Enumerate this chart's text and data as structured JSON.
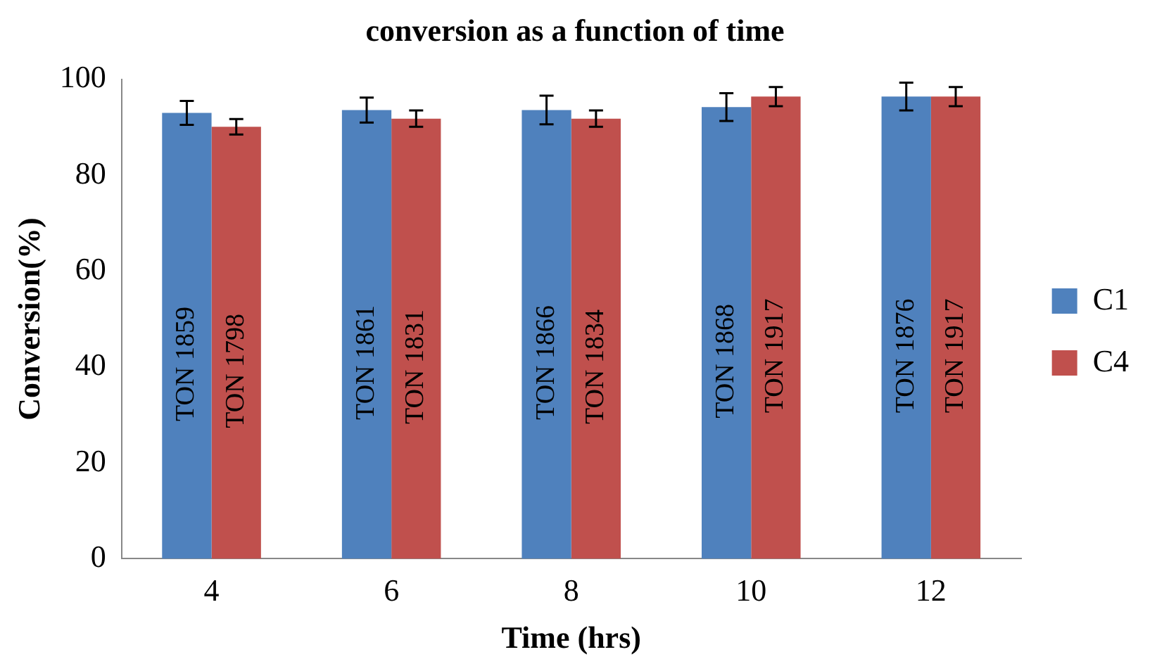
{
  "chart_data": {
    "type": "bar",
    "title": "conversion as a function of time",
    "xlabel": "Time (hrs)",
    "ylabel": "Conversion(%)",
    "categories": [
      "4",
      "6",
      "8",
      "10",
      "12"
    ],
    "series": [
      {
        "name": "C1",
        "color": "#4f81bd",
        "values": [
          93,
          93.6,
          93.6,
          94.2,
          96.4
        ],
        "errors": [
          2.5,
          2.6,
          3,
          2.9,
          2.9
        ],
        "value_labels": [
          "TON 1859",
          "TON 1861",
          "TON 1866",
          "TON 1868",
          "TON 1876"
        ]
      },
      {
        "name": "C4",
        "color": "#c0504d",
        "values": [
          90.1,
          91.8,
          91.8,
          96.4,
          96.4
        ],
        "errors": [
          1.6,
          1.7,
          1.7,
          2,
          2
        ],
        "value_labels": [
          "TON 1798",
          "TON 1831",
          "TON 1834",
          "TON 1917",
          "TON 1917"
        ]
      }
    ],
    "ylim": [
      0,
      100
    ],
    "yticks": [
      0,
      20,
      40,
      60,
      80,
      100
    ],
    "grid": false,
    "legend": "right"
  }
}
